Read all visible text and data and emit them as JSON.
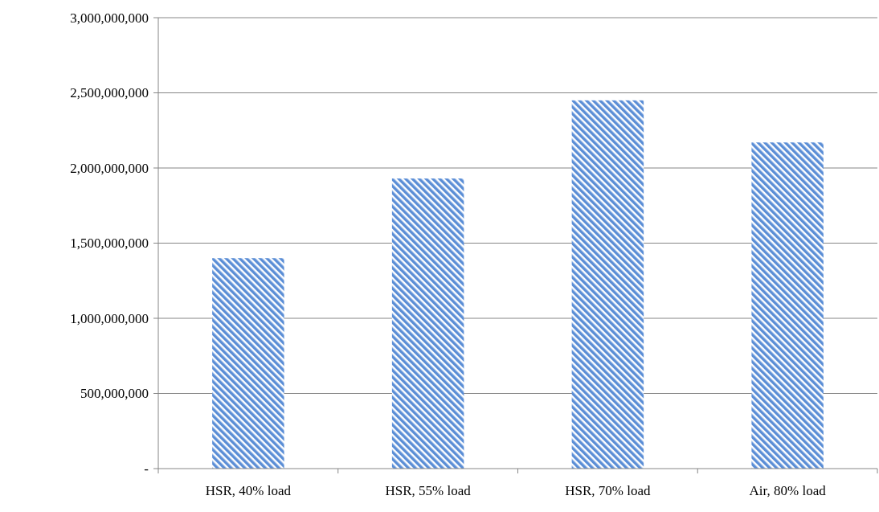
{
  "chart_data": {
    "type": "bar",
    "categories": [
      "HSR, 40% load",
      "HSR, 55% load",
      "HSR, 70% load",
      "Air, 80% load"
    ],
    "values": [
      1400000000,
      1930000000,
      2450000000,
      2170000000
    ],
    "color": "#5b8ed6",
    "ylim": [
      0,
      3000000000
    ],
    "yticks": [
      {
        "value": 0,
        "label": "-"
      },
      {
        "value": 500000000,
        "label": "500,000,000"
      },
      {
        "value": 1000000000,
        "label": "1,000,000,000"
      },
      {
        "value": 1500000000,
        "label": "1,500,000,000"
      },
      {
        "value": 2000000000,
        "label": "2,000,000,000"
      },
      {
        "value": 2500000000,
        "label": "2,500,000,000"
      },
      {
        "value": 3000000000,
        "label": "3,000,000,000"
      }
    ],
    "grid": "y"
  }
}
